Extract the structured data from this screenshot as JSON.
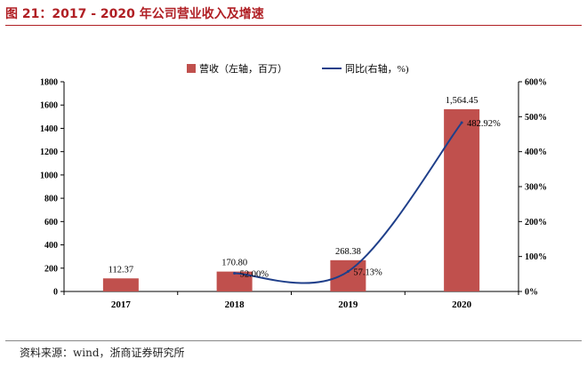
{
  "figure": {
    "title": "图 21：2017 - 2020 年公司营业收入及增速",
    "source": "资料来源：wind，浙商证券研究所"
  },
  "chart_data": {
    "type": "bar",
    "categories": [
      "2017",
      "2018",
      "2019",
      "2020"
    ],
    "series": [
      {
        "name": "营收（左轴，百万）",
        "type": "bar",
        "axis": "left",
        "color": "#c0504d",
        "values": [
          112.37,
          170.8,
          268.38,
          1564.45
        ],
        "labels": [
          "112.37",
          "170.80",
          "268.38",
          "1,564.45"
        ]
      },
      {
        "name": "同比(右轴，%)",
        "type": "line",
        "axis": "right",
        "color": "#1f3f8a",
        "values": [
          null,
          52.0,
          57.13,
          482.92
        ],
        "labels": [
          "",
          "52.00%",
          "57.13%",
          "482.92%"
        ]
      }
    ],
    "y_left": {
      "min": 0,
      "max": 1800,
      "ticks": [
        "0",
        "200",
        "400",
        "600",
        "800",
        "1000",
        "1200",
        "1400",
        "1600",
        "1800"
      ]
    },
    "y_right": {
      "min": 0,
      "max": 600,
      "ticks": [
        "0%",
        "100%",
        "200%",
        "300%",
        "400%",
        "500%",
        "600%"
      ]
    },
    "legend_position": "top-center",
    "grid": false
  }
}
